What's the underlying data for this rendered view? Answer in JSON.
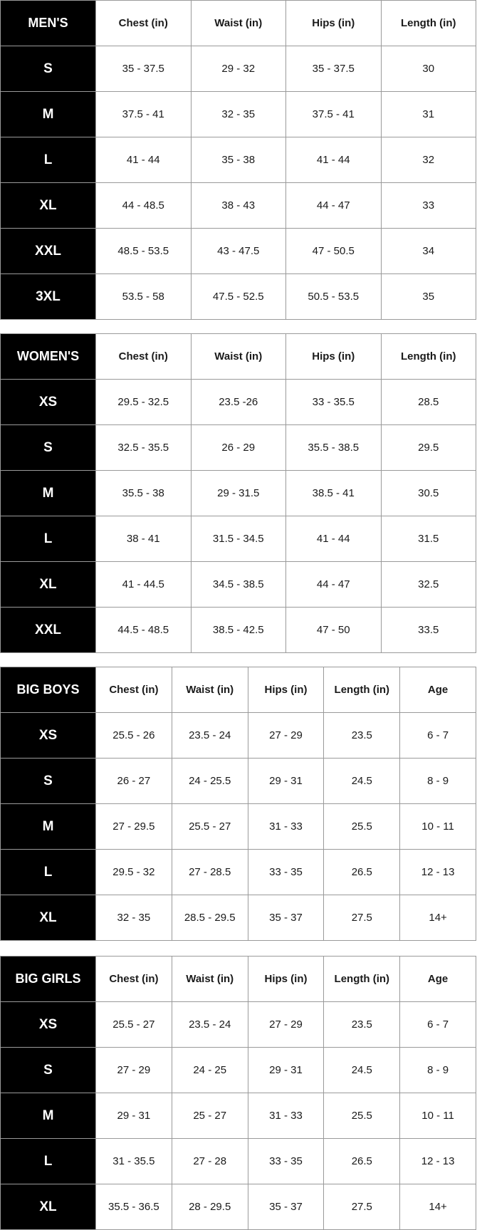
{
  "tables": [
    {
      "title": "MEN'S",
      "columns": [
        "Chest (in)",
        "Waist (in)",
        "Hips (in)",
        "Length (in)"
      ],
      "rows": [
        {
          "size": "S",
          "values": [
            "35 - 37.5",
            "29 - 32",
            "35 - 37.5",
            "30"
          ]
        },
        {
          "size": "M",
          "values": [
            "37.5 - 41",
            "32 - 35",
            "37.5 - 41",
            "31"
          ]
        },
        {
          "size": "L",
          "values": [
            "41 - 44",
            "35 - 38",
            "41 - 44",
            "32"
          ]
        },
        {
          "size": "XL",
          "values": [
            "44 - 48.5",
            "38 - 43",
            "44 - 47",
            "33"
          ]
        },
        {
          "size": "XXL",
          "values": [
            "48.5 - 53.5",
            "43 - 47.5",
            "47 - 50.5",
            "34"
          ]
        },
        {
          "size": "3XL",
          "values": [
            "53.5 - 58",
            "47.5 - 52.5",
            "50.5 - 53.5",
            "35"
          ]
        }
      ]
    },
    {
      "title": "WOMEN'S",
      "columns": [
        "Chest (in)",
        "Waist (in)",
        "Hips (in)",
        "Length (in)"
      ],
      "rows": [
        {
          "size": "XS",
          "values": [
            "29.5 - 32.5",
            "23.5 -26",
            "33 - 35.5",
            "28.5"
          ]
        },
        {
          "size": "S",
          "values": [
            "32.5 - 35.5",
            "26 - 29",
            "35.5 - 38.5",
            "29.5"
          ]
        },
        {
          "size": "M",
          "values": [
            "35.5 - 38",
            "29 - 31.5",
            "38.5 - 41",
            "30.5"
          ]
        },
        {
          "size": "L",
          "values": [
            "38 - 41",
            "31.5 - 34.5",
            "41 - 44",
            "31.5"
          ]
        },
        {
          "size": "XL",
          "values": [
            "41 - 44.5",
            "34.5 - 38.5",
            "44 - 47",
            "32.5"
          ]
        },
        {
          "size": "XXL",
          "values": [
            "44.5 - 48.5",
            "38.5 - 42.5",
            "47 - 50",
            "33.5"
          ]
        }
      ]
    },
    {
      "title": "BIG BOYS",
      "columns": [
        "Chest (in)",
        "Waist (in)",
        "Hips (in)",
        "Length (in)",
        "Age"
      ],
      "rows": [
        {
          "size": "XS",
          "values": [
            "25.5 - 26",
            "23.5 - 24",
            "27 - 29",
            "23.5",
            "6 - 7"
          ]
        },
        {
          "size": "S",
          "values": [
            "26 - 27",
            "24 - 25.5",
            "29 - 31",
            "24.5",
            "8 - 9"
          ]
        },
        {
          "size": "M",
          "values": [
            "27 - 29.5",
            "25.5 - 27",
            "31 - 33",
            "25.5",
            "10 - 11"
          ]
        },
        {
          "size": "L",
          "values": [
            "29.5 - 32",
            "27 - 28.5",
            "33 - 35",
            "26.5",
            "12 - 13"
          ]
        },
        {
          "size": "XL",
          "values": [
            "32 - 35",
            "28.5 - 29.5",
            "35 - 37",
            "27.5",
            "14+"
          ]
        }
      ]
    },
    {
      "title": "BIG GIRLS",
      "columns": [
        "Chest (in)",
        "Waist (in)",
        "Hips (in)",
        "Length (in)",
        "Age"
      ],
      "rows": [
        {
          "size": "XS",
          "values": [
            "25.5 - 27",
            "23.5 - 24",
            "27 - 29",
            "23.5",
            "6 - 7"
          ]
        },
        {
          "size": "S",
          "values": [
            "27 - 29",
            "24 - 25",
            "29 - 31",
            "24.5",
            "8 - 9"
          ]
        },
        {
          "size": "M",
          "values": [
            "29 - 31",
            "25 - 27",
            "31 - 33",
            "25.5",
            "10 - 11"
          ]
        },
        {
          "size": "L",
          "values": [
            "31 - 35.5",
            "27 - 28",
            "33 - 35",
            "26.5",
            "12 - 13"
          ]
        },
        {
          "size": "XL",
          "values": [
            "35.5 - 36.5",
            "28 - 29.5",
            "35 - 37",
            "27.5",
            "14+"
          ]
        }
      ]
    }
  ],
  "colors": {
    "label_bg": "#000000",
    "label_text": "#ffffff",
    "border": "#9a9a9a",
    "cell_text": "#1a1a1a"
  }
}
